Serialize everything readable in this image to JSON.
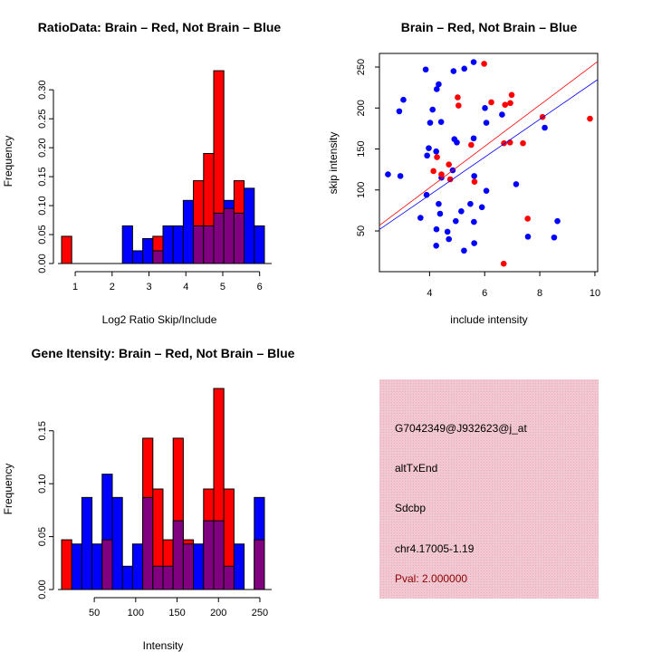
{
  "chart_data": [
    {
      "type": "bar",
      "title": "RatioData: Brain – Red, Not Brain – Blue",
      "xlabel": "Log2 Ratio Skip/Include",
      "ylabel": "Frequency",
      "bin_start": 0.63,
      "bin_width": 0.275,
      "xlim": [
        0.63,
        6.13
      ],
      "ylim": [
        0,
        0.33
      ],
      "xticks": [
        "1",
        "2",
        "3",
        "4",
        "5",
        "6"
      ],
      "xtick_values": [
        1,
        2,
        3,
        4,
        5,
        6
      ],
      "yticks": [
        "0.00",
        "0.05",
        "0.10",
        "0.15",
        "0.20",
        "0.25",
        "0.30"
      ],
      "ytick_values": [
        0,
        0.05,
        0.1,
        0.15,
        0.2,
        0.25,
        0.3
      ],
      "series": [
        {
          "name": "Brain",
          "color": "#ff0000",
          "values": [
            0.047,
            0,
            0,
            0,
            0,
            0,
            0,
            0,
            0,
            0.047,
            0,
            0,
            0,
            0.143,
            0.19,
            0.333,
            0.095,
            0.143,
            0,
            0
          ]
        },
        {
          "name": "Not Brain",
          "color": "#0000ff",
          "values": [
            0,
            0,
            0,
            0,
            0,
            0,
            0.065,
            0.022,
            0.043,
            0.022,
            0.065,
            0.065,
            0.109,
            0.065,
            0.065,
            0.087,
            0.109,
            0.087,
            0.13,
            0.065
          ]
        }
      ],
      "overlap_color": "#800080"
    },
    {
      "type": "scatter",
      "title": "Brain – Red, Not Brain – Blue",
      "xlabel": "include intensity",
      "ylabel": "skip intensity",
      "xlim": [
        2.18,
        10.1
      ],
      "ylim": [
        0.3,
        266.6
      ],
      "xticks": [
        "4",
        "6",
        "8",
        "10"
      ],
      "xtick_values": [
        4,
        6,
        8,
        10
      ],
      "yticks": [
        "50",
        "100",
        "150",
        "200",
        "250"
      ],
      "ytick_values": [
        50,
        100,
        150,
        200,
        250
      ],
      "series": [
        {
          "name": "Not Brain",
          "color": "#0000ff",
          "fit": {
            "slope": 23.1,
            "intercept": 1.4
          },
          "points": [
            [
              2.49,
              119
            ],
            [
              2.94,
              117
            ],
            [
              2.9,
              196
            ],
            [
              3.05,
              210
            ],
            [
              3.86,
              247
            ],
            [
              3.67,
              66
            ],
            [
              3.89,
              94
            ],
            [
              3.91,
              142
            ],
            [
              3.97,
              151
            ],
            [
              4.02,
              182
            ],
            [
              4.11,
              198
            ],
            [
              4.24,
              147
            ],
            [
              4.26,
              223
            ],
            [
              4.33,
              229
            ],
            [
              4.33,
              83
            ],
            [
              4.38,
              71
            ],
            [
              4.42,
              183
            ],
            [
              4.43,
              115
            ],
            [
              4.25,
              52
            ],
            [
              4.24,
              32
            ],
            [
              4.65,
              49
            ],
            [
              4.7,
              40
            ],
            [
              4.84,
              124
            ],
            [
              4.87,
              245
            ],
            [
              4.9,
              162
            ],
            [
              4.99,
              158
            ],
            [
              4.95,
              62
            ],
            [
              5.15,
              74
            ],
            [
              5.26,
              248
            ],
            [
              5.25,
              26
            ],
            [
              5.48,
              83
            ],
            [
              5.6,
              256
            ],
            [
              5.6,
              163
            ],
            [
              5.62,
              117
            ],
            [
              5.61,
              61
            ],
            [
              5.62,
              35
            ],
            [
              5.9,
              79
            ],
            [
              6.01,
              200
            ],
            [
              6.06,
              182
            ],
            [
              6.06,
              99
            ],
            [
              6.63,
              192
            ],
            [
              7.14,
              107
            ],
            [
              7.57,
              43
            ],
            [
              8.18,
              176
            ],
            [
              8.52,
              42
            ],
            [
              8.64,
              62
            ]
          ]
        },
        {
          "name": "Brain",
          "color": "#ff0000",
          "fit": {
            "slope": 25.25,
            "intercept": 1.7
          },
          "points": [
            [
              5.98,
              254
            ],
            [
              6.24,
              207
            ],
            [
              5.02,
              213
            ],
            [
              5.05,
              203
            ],
            [
              6.98,
              216
            ],
            [
              6.74,
              204
            ],
            [
              6.93,
              206
            ],
            [
              8.1,
              189
            ],
            [
              9.82,
              187
            ],
            [
              5.51,
              155
            ],
            [
              6.7,
              157
            ],
            [
              6.92,
              158
            ],
            [
              7.39,
              157
            ],
            [
              4.27,
              140
            ],
            [
              4.7,
              131
            ],
            [
              4.14,
              123
            ],
            [
              4.43,
              119
            ],
            [
              4.75,
              113
            ],
            [
              5.63,
              110
            ],
            [
              7.56,
              65
            ],
            [
              6.69,
              10
            ]
          ]
        }
      ]
    },
    {
      "type": "bar",
      "title": "Gene Itensity: Brain – Red, Not Brain – Blue",
      "xlabel": "Intensity",
      "ylabel": "Frequency",
      "bin_start": 10.5,
      "bin_width": 12.25,
      "xlim": [
        10.5,
        255.5
      ],
      "ylim": [
        0,
        0.19
      ],
      "xticks": [
        "50",
        "100",
        "150",
        "200",
        "250"
      ],
      "xtick_values": [
        50,
        100,
        150,
        200,
        250
      ],
      "yticks": [
        "0.00",
        "0.05",
        "0.10",
        "0.15"
      ],
      "ytick_values": [
        0,
        0.05,
        0.1,
        0.15
      ],
      "series": [
        {
          "name": "Brain",
          "color": "#ff0000",
          "values": [
            0.047,
            0,
            0,
            0,
            0.047,
            0,
            0,
            0,
            0.143,
            0.095,
            0.047,
            0.143,
            0.047,
            0,
            0.095,
            0.19,
            0.095,
            0,
            0,
            0.047
          ]
        },
        {
          "name": "Not Brain",
          "color": "#0000ff",
          "values": [
            0,
            0.043,
            0.087,
            0.043,
            0.109,
            0.087,
            0.022,
            0.043,
            0.087,
            0.022,
            0.022,
            0.065,
            0.043,
            0.043,
            0.065,
            0.065,
            0.022,
            0.043,
            0,
            0.087
          ]
        }
      ],
      "overlap_color": "#800080"
    }
  ],
  "info_panel": {
    "probe_id": "G7042349@J932623@j_at",
    "event_type": "altTxEnd",
    "gene": "Sdcbp",
    "location": "chr4.17005-1.19",
    "pval": "Pval: 2.000000",
    "pval_color": "#8b0000",
    "background_color": "#f2c4d0"
  }
}
